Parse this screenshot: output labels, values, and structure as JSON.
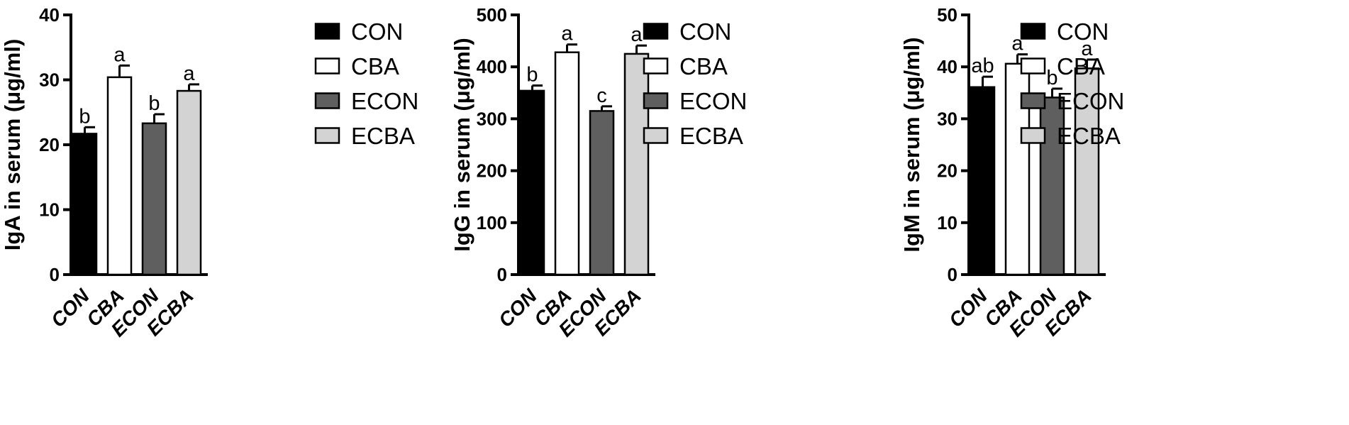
{
  "chart_data": [
    {
      "type": "bar",
      "categories": [
        "CON",
        "CBA",
        "ECON",
        "ECBA"
      ],
      "values": [
        21.7,
        30.4,
        23.3,
        28.3
      ],
      "errors": [
        1.0,
        1.8,
        1.4,
        1.0
      ],
      "significance": [
        "b",
        "a",
        "b",
        "a"
      ],
      "ylabel": "IgA in serum (μg/ml)",
      "ylim": [
        0,
        40
      ],
      "yticks": [
        0,
        10,
        20,
        30,
        40
      ],
      "legend": [
        "CON",
        "CBA",
        "ECON",
        "ECBA"
      ],
      "legend_position": "right",
      "grid": false
    },
    {
      "type": "bar",
      "categories": [
        "CON",
        "CBA",
        "ECON",
        "ECBA"
      ],
      "values": [
        354,
        428,
        315,
        425
      ],
      "errors": [
        10,
        15,
        9,
        16
      ],
      "significance": [
        "b",
        "a",
        "c",
        "a"
      ],
      "ylabel": "IgG in serum (μg/ml)",
      "ylim": [
        0,
        500
      ],
      "yticks": [
        0,
        100,
        200,
        300,
        400,
        500
      ],
      "legend": [
        "CON",
        "CBA",
        "ECON",
        "ECBA"
      ],
      "legend_position": "right",
      "grid": false
    },
    {
      "type": "bar",
      "categories": [
        "CON",
        "CBA",
        "ECON",
        "ECBA"
      ],
      "values": [
        36.1,
        40.6,
        34.1,
        39.7
      ],
      "errors": [
        2.0,
        1.8,
        1.7,
        1.7
      ],
      "significance": [
        "ab",
        "a",
        "b",
        "a"
      ],
      "ylabel": "IgM in serum (μg/ml)",
      "ylim": [
        0,
        50
      ],
      "yticks": [
        0,
        10,
        20,
        30,
        40,
        50
      ],
      "legend": [
        "CON",
        "CBA",
        "ECON",
        "ECBA"
      ],
      "legend_position": "right",
      "grid": false
    }
  ],
  "colors": {
    "CON": "#000000",
    "CBA": "#ffffff",
    "ECON": "#5f5f5f",
    "ECBA": "#d3d3d3"
  }
}
